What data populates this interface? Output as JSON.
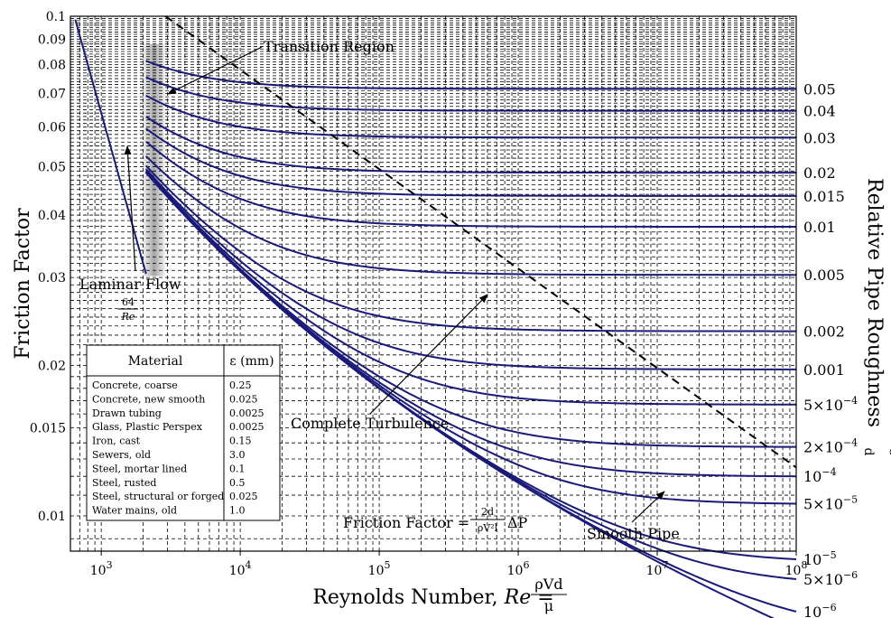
{
  "chart_data": {
    "type": "line",
    "title": "",
    "xlabel_prefix": "Reynolds Number, ",
    "xlabel_var": "Re",
    "xlabel_eq": " = ",
    "xlabel_num": "ρVd",
    "xlabel_den": "μ",
    "ylabel": "Friction Factor",
    "y2label": "Relative Pipe Roughness",
    "y2label_sym_num": "ε",
    "y2label_sym_den": "d",
    "x_scale": "log",
    "y_scale": "log",
    "xlim": [
      600,
      100000000
    ],
    "ylim": [
      0.0085,
      0.1
    ],
    "grid": true,
    "x_ticks": [
      {
        "value": 1000,
        "base": "10",
        "exp": "3"
      },
      {
        "value": 10000,
        "base": "10",
        "exp": "4"
      },
      {
        "value": 100000,
        "base": "10",
        "exp": "5"
      },
      {
        "value": 1000000,
        "base": "10",
        "exp": "6"
      },
      {
        "value": 10000000,
        "base": "10",
        "exp": "7"
      },
      {
        "value": 100000000,
        "base": "10",
        "exp": "8"
      }
    ],
    "y_ticks": [
      {
        "value": 0.1,
        "label": "0.1"
      },
      {
        "value": 0.09,
        "label": "0.09"
      },
      {
        "value": 0.08,
        "label": "0.08"
      },
      {
        "value": 0.07,
        "label": "0.07"
      },
      {
        "value": 0.06,
        "label": "0.06"
      },
      {
        "value": 0.05,
        "label": "0.05"
      },
      {
        "value": 0.04,
        "label": "0.04"
      },
      {
        "value": 0.03,
        "label": "0.03"
      },
      {
        "value": 0.02,
        "label": "0.02"
      },
      {
        "value": 0.015,
        "label": "0.015"
      },
      {
        "value": 0.01,
        "label": "0.01"
      }
    ],
    "roughness_series": [
      {
        "rr": 0.05,
        "label": "0.05"
      },
      {
        "rr": 0.04,
        "label": "0.04"
      },
      {
        "rr": 0.03,
        "label": "0.03"
      },
      {
        "rr": 0.02,
        "label": "0.02"
      },
      {
        "rr": 0.015,
        "label": "0.015"
      },
      {
        "rr": 0.01,
        "label": "0.01"
      },
      {
        "rr": 0.005,
        "label": "0.005"
      },
      {
        "rr": 0.002,
        "label": "0.002"
      },
      {
        "rr": 0.001,
        "label": "0.001"
      },
      {
        "rr": 0.0005,
        "label": "5×10",
        "exp": "−4"
      },
      {
        "rr": 0.0002,
        "label": "2×10",
        "exp": "−4"
      },
      {
        "rr": 0.0001,
        "label": "10",
        "exp": "−4"
      },
      {
        "rr": 5e-05,
        "label": "5×10",
        "exp": "−5"
      },
      {
        "rr": 1e-05,
        "label": "10",
        "exp": "−5"
      },
      {
        "rr": 5e-06,
        "label": "5×10",
        "exp": "−6"
      },
      {
        "rr": 1e-06,
        "label": "10",
        "exp": "−6"
      },
      {
        "rr": 0,
        "label": ""
      }
    ],
    "laminar": {
      "x": [
        650,
        2100
      ],
      "y": [
        0.0985,
        0.0305
      ]
    },
    "transition_band": {
      "x": [
        2100,
        3000
      ]
    },
    "complete_turbulence": {
      "x": [
        2900,
        100000000
      ],
      "y": [
        0.1,
        0.0125
      ]
    },
    "annotations": {
      "transition": "Transition Region",
      "laminar": "Laminar Flow",
      "laminar_num": "64",
      "laminar_den": "Re",
      "turbulence": "Complete Turbulence",
      "smooth": "Smooth Pipe",
      "friction_prefix": "Friction Factor = ",
      "friction_num": "2d",
      "friction_den": "ρV²l",
      "friction_suffix": "ΔP"
    },
    "colors": {
      "curve": "#1a1a7a",
      "grid": "#000000",
      "band": "#a8a8a8"
    }
  },
  "table": {
    "headers": [
      "Material",
      "ε (mm)"
    ],
    "rows": [
      [
        "Concrete, coarse",
        "0.25"
      ],
      [
        "Concrete, new smooth",
        "0.025"
      ],
      [
        "Drawn tubing",
        "0.0025"
      ],
      [
        "Glass, Plastic Perspex",
        "0.0025"
      ],
      [
        "Iron, cast",
        "0.15"
      ],
      [
        "Sewers, old",
        "3.0"
      ],
      [
        "Steel, mortar lined",
        "0.1"
      ],
      [
        "Steel, rusted",
        "0.5"
      ],
      [
        "Steel, structural or forged",
        "0.025"
      ],
      [
        "Water mains, old",
        "1.0"
      ]
    ]
  }
}
